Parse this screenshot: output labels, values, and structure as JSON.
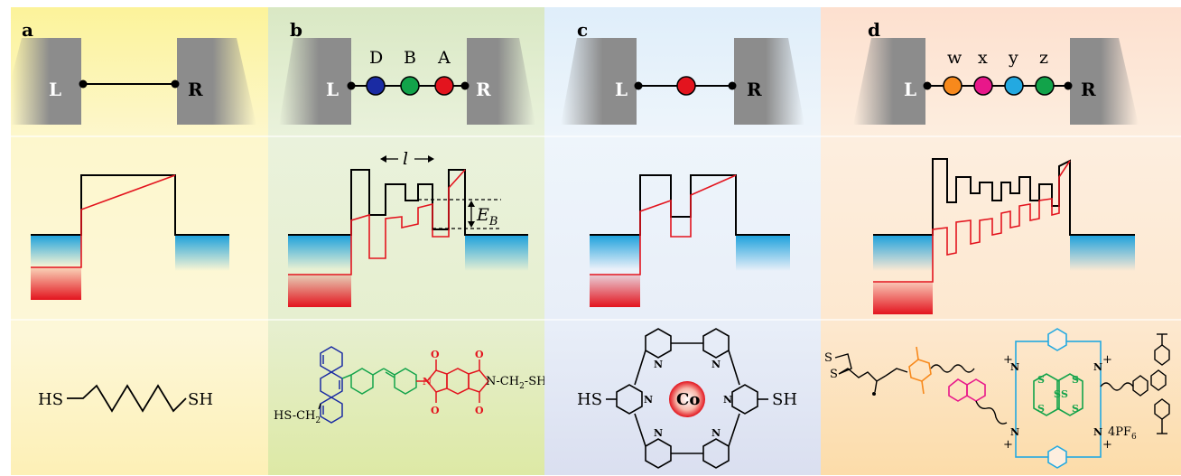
{
  "panels": [
    {
      "id": "a",
      "letter": "a",
      "left_label": "L",
      "right_label": "R",
      "units": [],
      "molecule": {
        "left_group": "HS",
        "right_group": "SH"
      }
    },
    {
      "id": "b",
      "letter": "b",
      "left_label": "L",
      "right_label": "R",
      "units": [
        {
          "label": "D",
          "color": "#1a2ba3"
        },
        {
          "label": "B",
          "color": "#12a34a"
        },
        {
          "label": "A",
          "color": "#e3141e"
        }
      ],
      "length_label": "l",
      "barrier_label": "E",
      "barrier_sub": "B",
      "molecule": {
        "left_group": "HS-CH",
        "left_sub": "2",
        "right_group": "N-CH",
        "right_sub": "2",
        "right_tail": "-SH",
        "o_label": "O",
        "n_label": "N"
      }
    },
    {
      "id": "c",
      "letter": "c",
      "left_label": "L",
      "right_label": "R",
      "units": [
        {
          "label": "",
          "color": "#e3141e"
        }
      ],
      "molecule": {
        "left_group": "HS",
        "right_group": "SH",
        "metal": "Co",
        "n_label": "N"
      }
    },
    {
      "id": "d",
      "letter": "d",
      "left_label": "L",
      "right_label": "R",
      "units": [
        {
          "label": "w",
          "color": "#f7891c"
        },
        {
          "label": "x",
          "color": "#e8178a"
        },
        {
          "label": "y",
          "color": "#23a9e1"
        },
        {
          "label": "z",
          "color": "#12a34a"
        }
      ],
      "molecule": {
        "s_label": "S",
        "counterion": "4PF",
        "counterion_sub": "6",
        "n_label": "N",
        "plus": "+"
      }
    }
  ],
  "colors": {
    "panel_a_top": "#fcf39a",
    "panel_a_mid": "#fdf7cd",
    "panel_a_bot": "#fdf0b6",
    "panel_b_top": "#d9e8c4",
    "panel_b_mid": "#eaf2dc",
    "panel_b_bot": "#dde9a5",
    "panel_c_top": "#dfeefa",
    "panel_c_mid": "#eef5fb",
    "panel_c_bot": "#dadff0",
    "panel_d_top": "#fde0cf",
    "panel_d_mid": "#fdeedf",
    "panel_d_bot": "#fcdca9",
    "electrode": "#8c8c8c",
    "blue_band": "#1aa0dc",
    "red_band": "#e3141e",
    "profile_red": "#e3141e"
  }
}
